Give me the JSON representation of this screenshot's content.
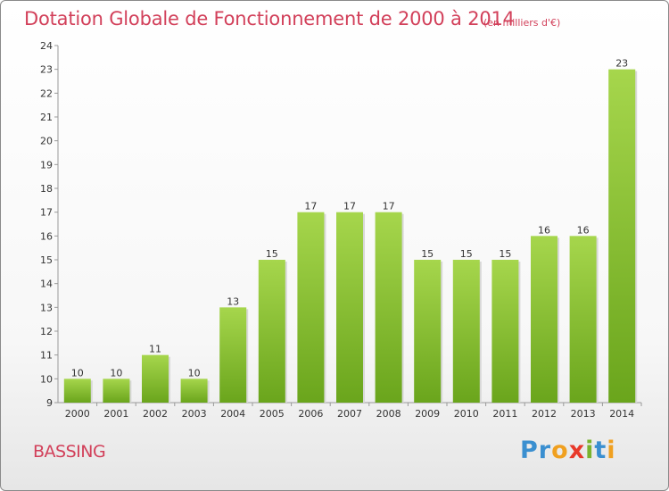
{
  "header": {
    "title": "Dotation Globale de Fonctionnement de 2000 à 2014",
    "subtitle": "(en milliers d'€)"
  },
  "footer": {
    "commune": "BASSING",
    "logo": {
      "text": "Proxiti",
      "letters": [
        {
          "char": "P",
          "color": "#3a8fd0"
        },
        {
          "char": "r",
          "color": "#3a8fd0"
        },
        {
          "char": "o",
          "color": "#f0a020"
        },
        {
          "char": "x",
          "color": "#e8392a"
        },
        {
          "char": "i",
          "color": "#7ab32e"
        },
        {
          "char": "t",
          "color": "#3a8fd0"
        },
        {
          "char": "i",
          "color": "#f0a020"
        }
      ]
    }
  },
  "colors": {
    "title": "#d2405a",
    "bar_light": "#a6d64c",
    "bar_dark": "#6aa51c"
  },
  "chart_data": {
    "type": "bar",
    "categories": [
      "2000",
      "2001",
      "2002",
      "2003",
      "2004",
      "2005",
      "2006",
      "2007",
      "2008",
      "2009",
      "2010",
      "2011",
      "2012",
      "2013",
      "2014"
    ],
    "values": [
      10,
      10,
      11,
      10,
      13,
      15,
      17,
      17,
      17,
      15,
      15,
      15,
      16,
      16,
      23
    ],
    "ylim": [
      9,
      24
    ],
    "yticks": [
      9,
      10,
      11,
      12,
      13,
      14,
      15,
      16,
      17,
      18,
      19,
      20,
      21,
      22,
      23,
      24
    ],
    "grid": false,
    "legend": "none"
  }
}
